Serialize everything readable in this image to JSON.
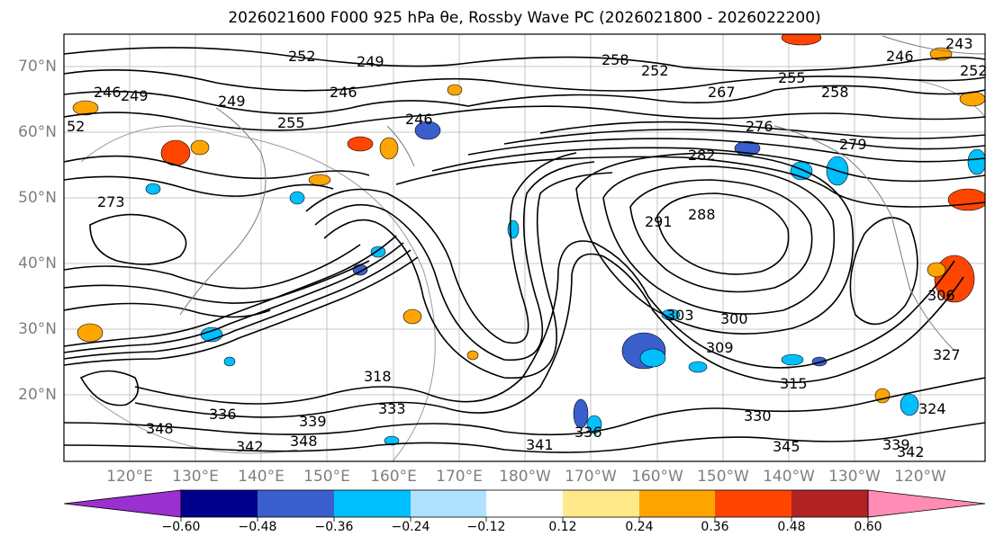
{
  "map": {
    "title": "2026021600 F000 925 hPa θe, Rossby Wave PC (2026021800 - 2026022200)",
    "lat_labels": [
      "70°N",
      "60°N",
      "50°N",
      "40°N",
      "30°N",
      "20°N"
    ],
    "lon_labels": [
      "120°E",
      "130°E",
      "140°E",
      "150°E",
      "160°E",
      "170°E",
      "180°W",
      "170°W",
      "160°W",
      "150°W",
      "140°W",
      "130°W",
      "120°W"
    ],
    "contour_labels": [
      "252",
      "249",
      "246",
      "249",
      "246",
      "249",
      "255",
      "258",
      "252",
      "255",
      "258",
      "267",
      "276",
      "279",
      "246",
      "243",
      "252",
      "52",
      "246",
      "273",
      "282",
      "288",
      "291",
      "300",
      "303",
      "309",
      "315",
      "318",
      "330",
      "339",
      "348",
      "336",
      "342",
      "345",
      "324",
      "306",
      "336",
      "327",
      "348",
      "339",
      "342",
      "341",
      "333"
    ],
    "colorbar": {
      "ticks": [
        "−0.60",
        "−0.48",
        "−0.36",
        "−0.24",
        "−0.12",
        "0.12",
        "0.24",
        "0.36",
        "0.48",
        "0.60"
      ],
      "colors": [
        "#9b30d0",
        "#00008b",
        "#3a5fcd",
        "#00bfff",
        "#b0e2ff",
        "#ffffff",
        "#ffe98a",
        "#ffa500",
        "#ff4500",
        "#b22222",
        "#ff8cb4"
      ]
    }
  }
}
